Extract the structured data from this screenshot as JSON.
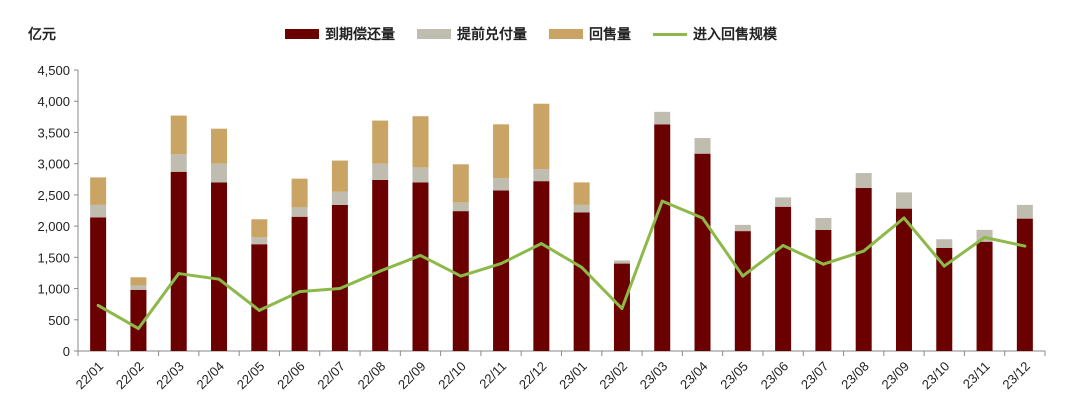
{
  "chart_data": {
    "type": "bar",
    "stacked": true,
    "unit_label": "亿元",
    "ylim": [
      0,
      4500
    ],
    "yticks": [
      "0",
      "500",
      "1,000",
      "1,500",
      "2,000",
      "2,500",
      "3,000",
      "3,500",
      "4,000",
      "4,500"
    ],
    "ytick_values": [
      0,
      500,
      1000,
      1500,
      2000,
      2500,
      3000,
      3500,
      4000,
      4500
    ],
    "legend_position": "top",
    "categories": [
      "22/01",
      "22/02",
      "22/03",
      "22/04",
      "22/05",
      "22/06",
      "22/07",
      "22/08",
      "22/09",
      "22/10",
      "22/11",
      "22/12",
      "23/01",
      "23/02",
      "23/03",
      "23/04",
      "23/05",
      "23/06",
      "23/07",
      "23/08",
      "23/09",
      "23/10",
      "23/11",
      "23/12"
    ],
    "series": [
      {
        "name": "到期偿还量",
        "kind": "bar",
        "color": "#6b0000",
        "values": [
          2140,
          980,
          2870,
          2700,
          1710,
          2150,
          2340,
          2740,
          2700,
          2240,
          2570,
          2720,
          2220,
          1400,
          3630,
          3160,
          1920,
          2310,
          1940,
          2610,
          2280,
          1650,
          1750,
          2120
        ]
      },
      {
        "name": "提前兑付量",
        "kind": "bar",
        "color": "#bfbdb0",
        "values": [
          200,
          70,
          280,
          300,
          110,
          150,
          210,
          260,
          240,
          140,
          200,
          190,
          120,
          50,
          200,
          250,
          100,
          150,
          190,
          240,
          260,
          140,
          190,
          220
        ]
      },
      {
        "name": "回售量",
        "kind": "bar",
        "color": "#c9a465",
        "values": [
          440,
          130,
          620,
          560,
          290,
          460,
          500,
          690,
          820,
          610,
          860,
          1050,
          360,
          0,
          0,
          0,
          0,
          0,
          0,
          0,
          0,
          0,
          0,
          0
        ]
      },
      {
        "name": "进入回售规模",
        "kind": "line",
        "color": "#8db84a",
        "values": [
          730,
          360,
          1240,
          1150,
          650,
          950,
          1000,
          1280,
          1530,
          1200,
          1400,
          1720,
          1340,
          680,
          2400,
          2130,
          1200,
          1690,
          1390,
          1600,
          2130,
          1360,
          1820,
          1680
        ]
      }
    ]
  }
}
